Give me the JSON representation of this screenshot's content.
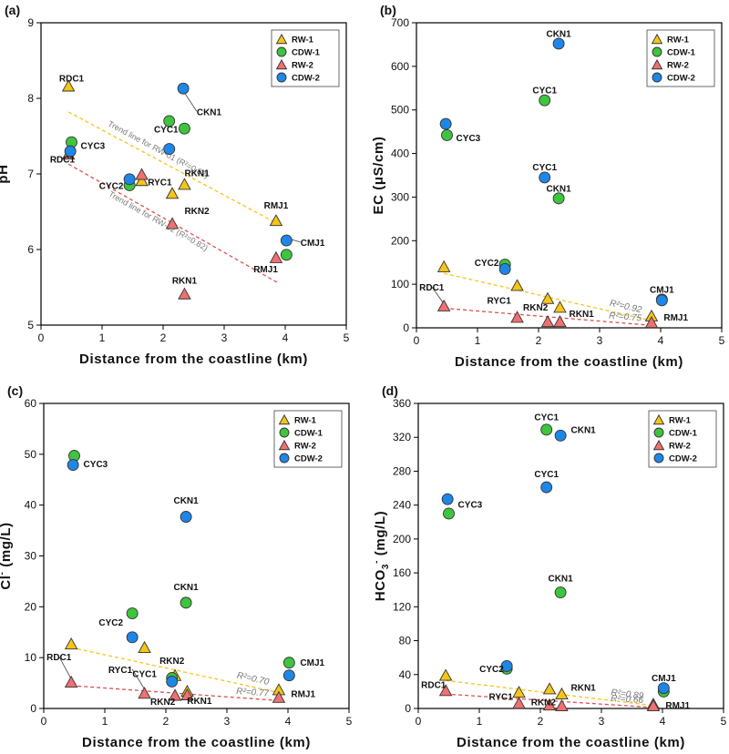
{
  "colors": {
    "RW-1": "#f5c518",
    "CDW-1": "#3ec43e",
    "RW-2": "#f07070",
    "CDW-2": "#1e86e6",
    "trend_RW-1": "#f5c518",
    "trend_RW-2": "#e05050"
  },
  "legend": [
    "RW-1",
    "CDW-1",
    "RW-2",
    "CDW-2"
  ],
  "chart_data": [
    {
      "type": "scatter",
      "panel": "(a)",
      "xlabel": "Distance from the coastline (km)",
      "ylabel": "pH",
      "xlim": [
        0,
        5
      ],
      "ylim": [
        5,
        9
      ],
      "xticks": [
        0,
        1,
        2,
        3,
        4,
        5
      ],
      "yticks": [
        5,
        6,
        7,
        8,
        9
      ],
      "series": [
        {
          "name": "RW-1",
          "marker": "triangle",
          "points": [
            [
              0.45,
              8.15
            ],
            [
              1.65,
              6.9
            ],
            [
              2.15,
              6.73
            ],
            [
              2.35,
              6.85
            ],
            [
              3.85,
              6.37
            ]
          ]
        },
        {
          "name": "CDW-1",
          "marker": "circle",
          "points": [
            [
              0.5,
              7.42
            ],
            [
              1.45,
              6.85
            ],
            [
              2.1,
              7.7
            ],
            [
              2.35,
              7.6
            ],
            [
              4.02,
              5.93
            ]
          ]
        },
        {
          "name": "RW-2",
          "marker": "triangle",
          "points": [
            [
              0.45,
              7.25
            ],
            [
              1.65,
              6.98
            ],
            [
              2.15,
              6.33
            ],
            [
              2.35,
              5.4
            ],
            [
              3.85,
              5.88
            ]
          ]
        },
        {
          "name": "CDW-2",
          "marker": "circle",
          "points": [
            [
              0.48,
              7.3
            ],
            [
              1.45,
              6.93
            ],
            [
              2.1,
              7.33
            ],
            [
              2.33,
              8.13
            ],
            [
              4.02,
              6.12
            ]
          ]
        }
      ],
      "trendlines": [
        {
          "series": "RW-1",
          "from": [
            0.45,
            7.82
          ],
          "to": [
            3.9,
            6.33
          ],
          "label": "Trend line for RW-01 (R²=0.82)"
        },
        {
          "series": "RW-2",
          "from": [
            0.45,
            7.13
          ],
          "to": [
            3.9,
            5.55
          ],
          "label": "Trend line for RW-02 (R²=0.82)"
        }
      ],
      "annotations": [
        {
          "text": "RDC1",
          "x": 0.5,
          "y": 8.22,
          "anchor": "middle",
          "to": null
        },
        {
          "text": "CKN1",
          "x": 2.55,
          "y": 7.78,
          "anchor": "start",
          "to": [
            2.33,
            8.1
          ]
        },
        {
          "text": "CYC3",
          "x": 0.65,
          "y": 7.33,
          "anchor": "start",
          "to": null
        },
        {
          "text": "RDC1",
          "x": 0.35,
          "y": 7.15,
          "anchor": "middle",
          "to": null
        },
        {
          "text": "CYC1",
          "x": 1.85,
          "y": 7.55,
          "anchor": "start",
          "to": null
        },
        {
          "text": "CYC2",
          "x": 1.35,
          "y": 6.8,
          "anchor": "end",
          "to": null
        },
        {
          "text": "RYC1",
          "x": 1.75,
          "y": 6.85,
          "anchor": "start",
          "to": null
        },
        {
          "text": "RKN1",
          "x": 2.35,
          "y": 6.97,
          "anchor": "start",
          "to": null
        },
        {
          "text": "RKN2",
          "x": 2.35,
          "y": 6.47,
          "anchor": "start",
          "to": null
        },
        {
          "text": "RMJ1",
          "x": 3.85,
          "y": 6.54,
          "anchor": "middle",
          "to": null
        },
        {
          "text": "CMJ1",
          "x": 4.25,
          "y": 6.05,
          "anchor": "start",
          "to": [
            4.02,
            6.15
          ]
        },
        {
          "text": "RMJ1",
          "x": 3.68,
          "y": 5.7,
          "anchor": "middle",
          "to": null
        },
        {
          "text": "RKN1",
          "x": 2.35,
          "y": 5.55,
          "anchor": "middle",
          "to": null
        }
      ]
    },
    {
      "type": "scatter",
      "panel": "(b)",
      "xlabel": "Distance from the coastline (km)",
      "ylabel": "EC (μS/cm)",
      "xlim": [
        0,
        5
      ],
      "ylim": [
        0,
        700
      ],
      "xticks": [
        0,
        1,
        2,
        3,
        4,
        5
      ],
      "yticks": [
        0,
        100,
        200,
        300,
        400,
        500,
        600,
        700
      ],
      "series": [
        {
          "name": "RW-1",
          "marker": "triangle",
          "points": [
            [
              0.45,
              138
            ],
            [
              1.65,
              95
            ],
            [
              2.15,
              65
            ],
            [
              2.35,
              45
            ],
            [
              3.85,
              25
            ]
          ]
        },
        {
          "name": "CDW-1",
          "marker": "circle",
          "points": [
            [
              0.5,
              442
            ],
            [
              1.45,
              145
            ],
            [
              2.1,
              522
            ],
            [
              2.33,
              297
            ],
            [
              4.02,
              65
            ]
          ]
        },
        {
          "name": "RW-2",
          "marker": "triangle",
          "points": [
            [
              0.45,
              48
            ],
            [
              1.65,
              22
            ],
            [
              2.15,
              12
            ],
            [
              2.35,
              12
            ],
            [
              3.85,
              10
            ]
          ]
        },
        {
          "name": "CDW-2",
          "marker": "circle",
          "points": [
            [
              0.48,
              468
            ],
            [
              1.45,
              135
            ],
            [
              2.1,
              345
            ],
            [
              2.33,
              652
            ],
            [
              4.02,
              63
            ]
          ]
        }
      ],
      "trendlines": [
        {
          "series": "RW-1",
          "from": [
            0.45,
            125
          ],
          "to": [
            3.9,
            15
          ],
          "label": "R²=0.92"
        },
        {
          "series": "RW-2",
          "from": [
            0.45,
            45
          ],
          "to": [
            3.9,
            5
          ],
          "label": "R²=0.75"
        }
      ],
      "annotations": [
        {
          "text": "CKN1",
          "x": 2.33,
          "y": 668,
          "anchor": "middle",
          "to": null
        },
        {
          "text": "CYC1",
          "x": 2.1,
          "y": 538,
          "anchor": "middle",
          "to": null
        },
        {
          "text": "CYC3",
          "x": 0.65,
          "y": 428,
          "anchor": "start",
          "to": null
        },
        {
          "text": "CYC1",
          "x": 2.1,
          "y": 362,
          "anchor": "middle",
          "to": null
        },
        {
          "text": "CKN1",
          "x": 2.33,
          "y": 312,
          "anchor": "middle",
          "to": null
        },
        {
          "text": "CYC2",
          "x": 1.35,
          "y": 142,
          "anchor": "end",
          "to": null
        },
        {
          "text": "RDC1",
          "x": 0.25,
          "y": 86,
          "anchor": "middle",
          "to": [
            0.45,
            55
          ]
        },
        {
          "text": "RYC1",
          "x": 1.55,
          "y": 55,
          "anchor": "end",
          "to": null
        },
        {
          "text": "RKN2",
          "x": 1.95,
          "y": 40,
          "anchor": "middle",
          "to": null
        },
        {
          "text": "RKN1",
          "x": 2.5,
          "y": 25,
          "anchor": "start",
          "to": null
        },
        {
          "text": "CMJ1",
          "x": 4.02,
          "y": 80,
          "anchor": "middle",
          "to": null
        },
        {
          "text": "RMJ1",
          "x": 4.05,
          "y": 17,
          "anchor": "start",
          "to": null
        }
      ]
    },
    {
      "type": "scatter",
      "panel": "(c)",
      "xlabel": "Distance from the coastline (km)",
      "ylabel": "Cl- (mg/L)",
      "xlim": [
        0,
        5
      ],
      "ylim": [
        0,
        60
      ],
      "xticks": [
        0,
        1,
        2,
        3,
        4,
        5
      ],
      "yticks": [
        0,
        10,
        20,
        30,
        40,
        50,
        60
      ],
      "series": [
        {
          "name": "RW-1",
          "marker": "triangle",
          "points": [
            [
              0.45,
              12.5
            ],
            [
              1.65,
              11.8
            ],
            [
              2.15,
              6.3
            ],
            [
              2.35,
              3.2
            ],
            [
              3.85,
              3.5
            ]
          ]
        },
        {
          "name": "CDW-1",
          "marker": "circle",
          "points": [
            [
              0.5,
              49.7
            ],
            [
              1.45,
              18.7
            ],
            [
              2.1,
              6.0
            ],
            [
              2.33,
              20.8
            ],
            [
              4.02,
              9.0
            ]
          ]
        },
        {
          "name": "RW-2",
          "marker": "triangle",
          "points": [
            [
              0.45,
              5.0
            ],
            [
              1.65,
              2.8
            ],
            [
              2.15,
              2.4
            ],
            [
              2.35,
              2.5
            ],
            [
              3.85,
              2.0
            ]
          ]
        },
        {
          "name": "CDW-2",
          "marker": "circle",
          "points": [
            [
              0.48,
              47.9
            ],
            [
              1.45,
              14.0
            ],
            [
              2.1,
              5.3
            ],
            [
              2.33,
              37.7
            ],
            [
              4.02,
              6.5
            ]
          ]
        }
      ],
      "trendlines": [
        {
          "series": "RW-1",
          "from": [
            0.45,
            12.0
          ],
          "to": [
            3.9,
            3.0
          ],
          "label": "R²=0.70"
        },
        {
          "series": "RW-2",
          "from": [
            0.45,
            4.5
          ],
          "to": [
            3.9,
            1.5
          ],
          "label": "R²=0.77"
        }
      ],
      "annotations": [
        {
          "text": "CYC3",
          "x": 0.65,
          "y": 47.5,
          "anchor": "start",
          "to": null
        },
        {
          "text": "CKN1",
          "x": 2.33,
          "y": 40.3,
          "anchor": "middle",
          "to": null
        },
        {
          "text": "CKN1",
          "x": 2.33,
          "y": 23.3,
          "anchor": "middle",
          "to": null
        },
        {
          "text": "CYC2",
          "x": 1.3,
          "y": 16.3,
          "anchor": "end",
          "to": null
        },
        {
          "text": "CMJ1",
          "x": 4.2,
          "y": 8.4,
          "anchor": "start",
          "to": null
        },
        {
          "text": "RKN2",
          "x": 2.1,
          "y": 8.8,
          "anchor": "middle",
          "to": null
        },
        {
          "text": "RDC1",
          "x": 0.25,
          "y": 9.5,
          "anchor": "middle",
          "to": [
            0.45,
            5.8
          ]
        },
        {
          "text": "RYC1",
          "x": 1.45,
          "y": 7.0,
          "anchor": "end",
          "to": [
            1.65,
            3.8
          ]
        },
        {
          "text": "CYC1",
          "x": 1.85,
          "y": 6.2,
          "anchor": "end",
          "to": null
        },
        {
          "text": "RMJ1",
          "x": 4.05,
          "y": 2.2,
          "anchor": "start",
          "to": null
        },
        {
          "text": "RKN2",
          "x": 1.95,
          "y": 0.7,
          "anchor": "middle",
          "to": null
        },
        {
          "text": "RKN1",
          "x": 2.55,
          "y": 0.9,
          "anchor": "middle",
          "to": null
        }
      ]
    },
    {
      "type": "scatter",
      "panel": "(d)",
      "xlabel": "Distance from the coastline (km)",
      "ylabel": "HCO3- (mg/L)",
      "xlim": [
        0,
        5
      ],
      "ylim": [
        0,
        360
      ],
      "xticks": [
        0,
        1,
        2,
        3,
        4,
        5
      ],
      "yticks": [
        0,
        40,
        80,
        120,
        160,
        200,
        240,
        280,
        320,
        360
      ],
      "series": [
        {
          "name": "RW-1",
          "marker": "triangle",
          "points": [
            [
              0.45,
              38
            ],
            [
              1.65,
              18
            ],
            [
              2.15,
              22
            ],
            [
              2.35,
              16
            ],
            [
              3.85,
              4
            ]
          ]
        },
        {
          "name": "CDW-1",
          "marker": "circle",
          "points": [
            [
              0.5,
              230
            ],
            [
              1.45,
              47
            ],
            [
              2.1,
              329
            ],
            [
              2.33,
              137
            ],
            [
              4.02,
              20
            ]
          ]
        },
        {
          "name": "RW-2",
          "marker": "triangle",
          "points": [
            [
              0.45,
              20
            ],
            [
              1.65,
              5
            ],
            [
              2.15,
              3
            ],
            [
              2.35,
              2
            ],
            [
              3.85,
              2
            ]
          ]
        },
        {
          "name": "CDW-2",
          "marker": "circle",
          "points": [
            [
              0.48,
              247
            ],
            [
              1.45,
              50
            ],
            [
              2.1,
              261
            ],
            [
              2.33,
              322
            ],
            [
              4.02,
              24
            ]
          ]
        }
      ],
      "trendlines": [
        {
          "series": "RW-1",
          "from": [
            0.45,
            33
          ],
          "to": [
            3.9,
            3
          ],
          "label": "R²=0.89"
        },
        {
          "series": "RW-2",
          "from": [
            0.45,
            17
          ],
          "to": [
            3.9,
            1
          ],
          "label": "R²=0.66"
        }
      ],
      "annotations": [
        {
          "text": "CYC1",
          "x": 2.1,
          "y": 340,
          "anchor": "middle",
          "to": null
        },
        {
          "text": "CKN1",
          "x": 2.5,
          "y": 325,
          "anchor": "start",
          "to": null
        },
        {
          "text": "CYC1",
          "x": 2.1,
          "y": 273,
          "anchor": "middle",
          "to": null
        },
        {
          "text": "CYC3",
          "x": 0.65,
          "y": 237,
          "anchor": "start",
          "to": null
        },
        {
          "text": "CKN1",
          "x": 2.33,
          "y": 150,
          "anchor": "middle",
          "to": null
        },
        {
          "text": "CYC2",
          "x": 1.4,
          "y": 43,
          "anchor": "end",
          "to": null
        },
        {
          "text": "RDC1",
          "x": 0.25,
          "y": 24,
          "anchor": "middle",
          "to": null
        },
        {
          "text": "RYC1",
          "x": 1.55,
          "y": 10,
          "anchor": "end",
          "to": null
        },
        {
          "text": "RKN1",
          "x": 2.5,
          "y": 21,
          "anchor": "start",
          "to": null
        },
        {
          "text": "RKN2",
          "x": 2.05,
          "y": 4,
          "anchor": "middle",
          "to": null
        },
        {
          "text": "CMJ1",
          "x": 4.02,
          "y": 32,
          "anchor": "middle",
          "to": null
        },
        {
          "text": "RMJ1",
          "x": 4.05,
          "y": 0,
          "anchor": "start",
          "to": null
        }
      ]
    }
  ]
}
